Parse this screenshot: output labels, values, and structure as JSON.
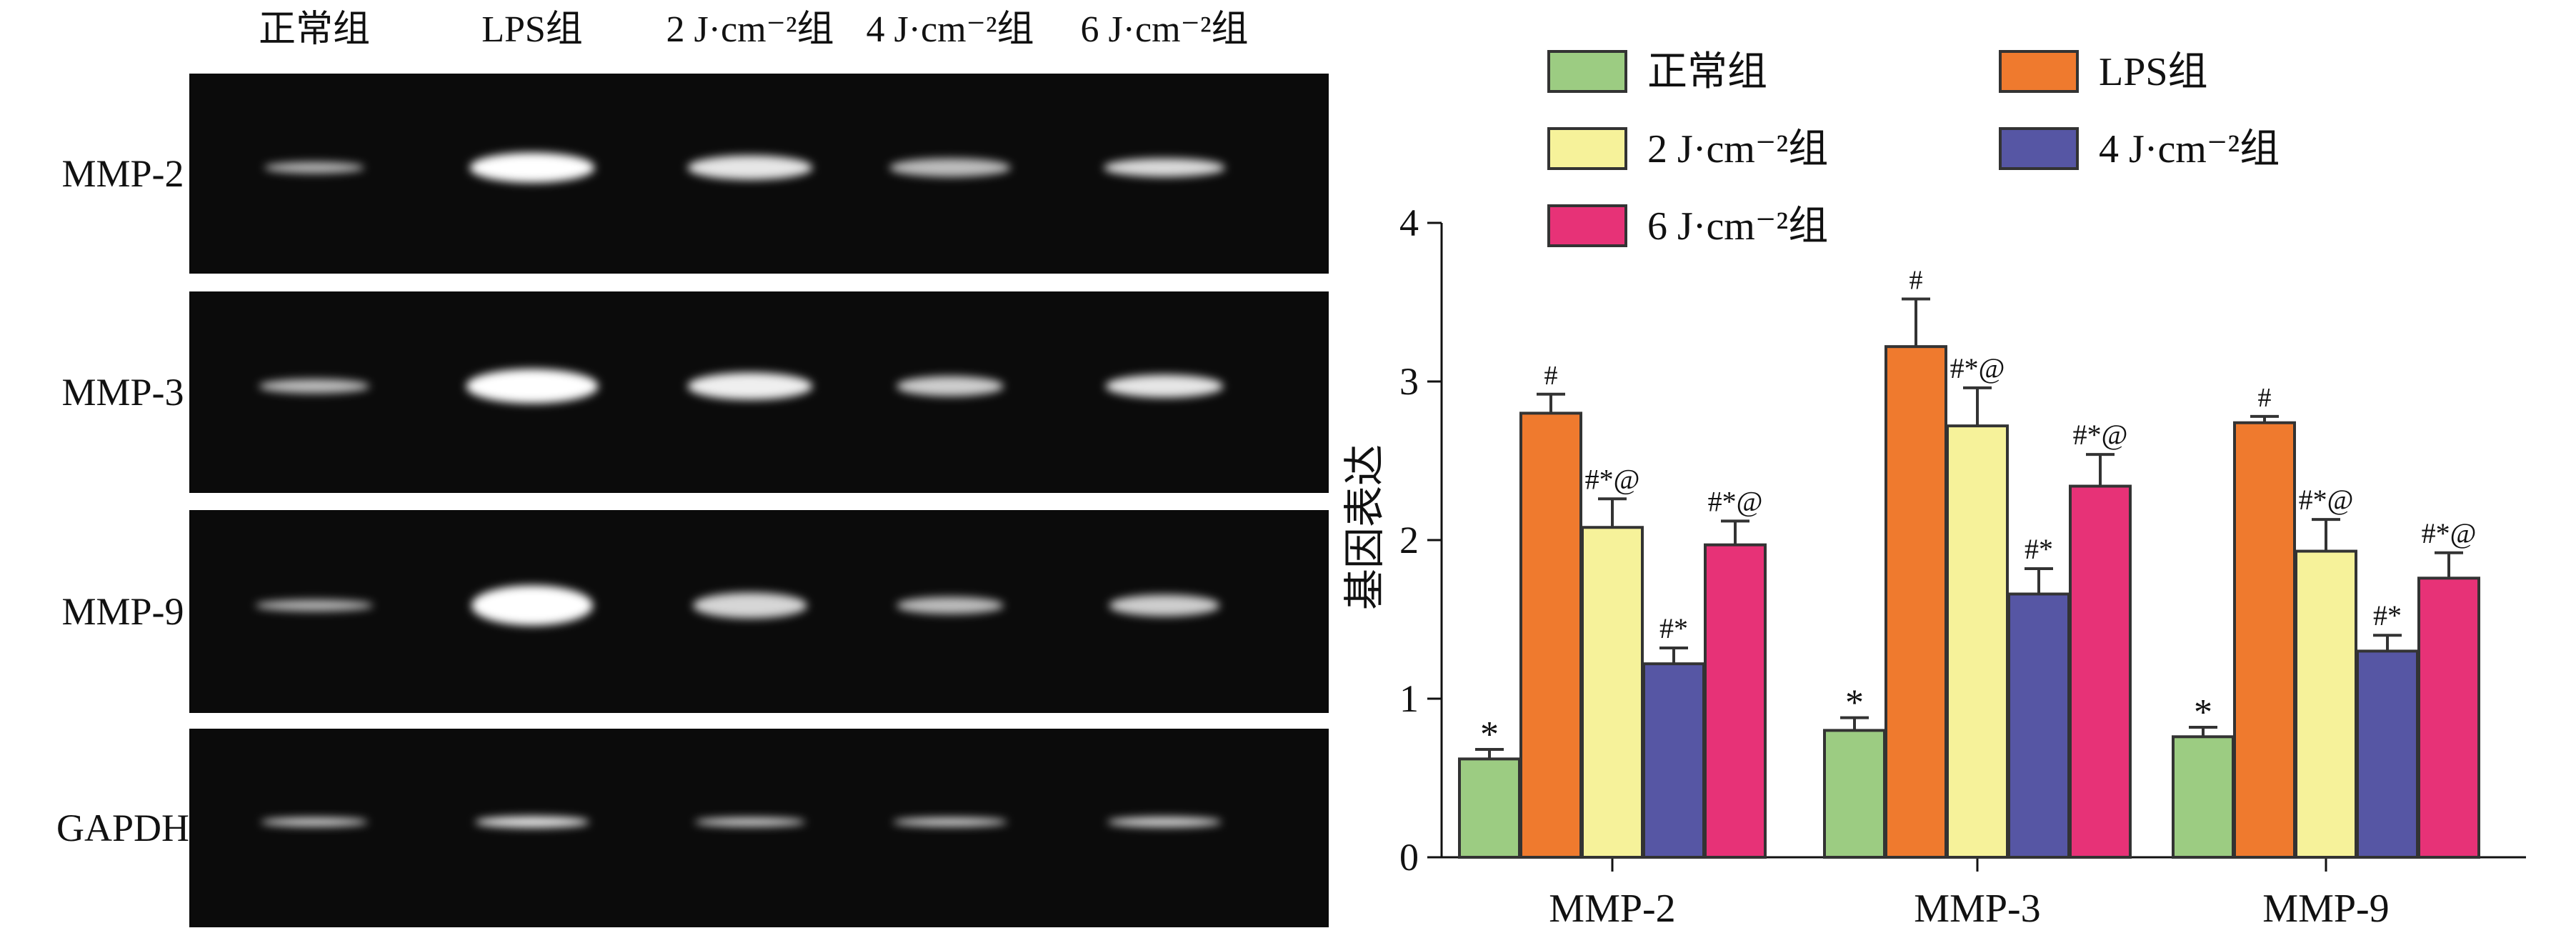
{
  "blot": {
    "lane_labels": [
      "正常组",
      "LPS组",
      "2 J·cm⁻²组",
      "4 J·cm⁻²组",
      "6 J·cm⁻²组"
    ],
    "rows": [
      {
        "label": "MMP-2",
        "intensity": [
          0.55,
          1.0,
          0.85,
          0.6,
          0.78
        ]
      },
      {
        "label": "MMP-3",
        "intensity": [
          0.6,
          1.0,
          0.9,
          0.7,
          0.85
        ]
      },
      {
        "label": "MMP-9",
        "intensity": [
          0.55,
          1.0,
          0.75,
          0.6,
          0.7
        ]
      },
      {
        "label": "GAPDH",
        "intensity": [
          0.75,
          0.85,
          0.75,
          0.75,
          0.75
        ]
      }
    ]
  },
  "chart_data": {
    "type": "bar",
    "categories": [
      "MMP-2",
      "MMP-3",
      "MMP-9"
    ],
    "ylabel": "基因表达",
    "xlabel": "",
    "ylim": [
      0,
      4
    ],
    "yticks": [
      0,
      1,
      2,
      3,
      4
    ],
    "legend_position": "top",
    "series": [
      {
        "name": "正常组",
        "color": "#9ccc82",
        "values": [
          0.62,
          0.8,
          0.76
        ],
        "errors": [
          0.06,
          0.08,
          0.06
        ],
        "annotations": [
          "*",
          "*",
          "*"
        ]
      },
      {
        "name": "LPS组",
        "color": "#ef7a2e",
        "values": [
          2.8,
          3.22,
          2.74
        ],
        "errors": [
          0.12,
          0.3,
          0.04
        ],
        "annotations": [
          "#",
          "#",
          "#"
        ]
      },
      {
        "name": "2 J·cm⁻²组",
        "color": "#f6f29a",
        "values": [
          2.08,
          2.72,
          1.93
        ],
        "errors": [
          0.18,
          0.24,
          0.2
        ],
        "annotations": [
          "#*@",
          "#*@",
          "#*@"
        ]
      },
      {
        "name": "4 J·cm⁻²组",
        "color": "#5656a4",
        "values": [
          1.22,
          1.66,
          1.3
        ],
        "errors": [
          0.1,
          0.16,
          0.1
        ],
        "annotations": [
          "#*",
          "#*",
          "#*"
        ]
      },
      {
        "name": "6 J·cm⁻²组",
        "color": "#e73277",
        "values": [
          1.97,
          2.34,
          1.76
        ],
        "errors": [
          0.15,
          0.2,
          0.16
        ],
        "annotations": [
          "#*@",
          "#*@",
          "#*@"
        ]
      }
    ]
  }
}
